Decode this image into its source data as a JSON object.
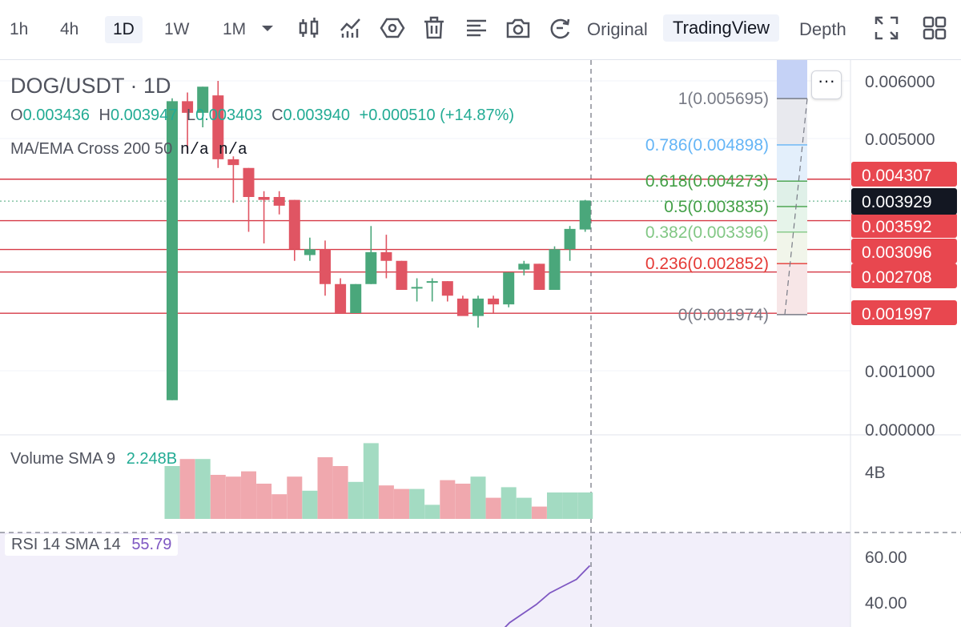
{
  "toolbar": {
    "timeframes": [
      "1h",
      "4h",
      "1D",
      "1W",
      "1M"
    ],
    "active_timeframe": "1D",
    "views": [
      "Original",
      "TradingView",
      "Depth"
    ],
    "active_view": "TradingView",
    "icons": [
      "timeframe-dropdown-icon",
      "candle-type-icon",
      "indicators-icon",
      "settings-hex-icon",
      "trash-icon",
      "drawing-list-icon",
      "camera-icon",
      "replay-icon",
      "fullscreen-icon",
      "grid-layout-icon"
    ]
  },
  "legend": {
    "symbol": "DOG/USDT · 1D",
    "o_label": "O",
    "o_value": "0.003436",
    "h_label": "H",
    "h_value": "0.003947",
    "l_label": "L",
    "l_value": "0.003403",
    "c_label": "C",
    "c_value": "0.003940",
    "change": "+0.000510 (+14.87%)",
    "ma_label": "MA/EMA Cross 200 50",
    "ma_values": "n/a n/a",
    "volume_label": "Volume SMA 9",
    "volume_value": "2.248B",
    "rsi_label": "RSI 14 SMA 14",
    "rsi_value": "55.79"
  },
  "fib_labels": [
    {
      "text": "1(0.005695)",
      "color": "#787b86"
    },
    {
      "text": "0.786(0.004898)",
      "color": "#64b5f6"
    },
    {
      "text": "0.618(0.004273)",
      "color": "#43a047"
    },
    {
      "text": "0.5(0.003835)",
      "color": "#43a047"
    },
    {
      "text": "0.382(0.003396)",
      "color": "#81c784"
    },
    {
      "text": "0.236(0.002852)",
      "color": "#e53935"
    },
    {
      "text": "0(0.001974)",
      "color": "#787b86"
    }
  ],
  "price_axis": {
    "ticks": [
      "0.006000",
      "0.005000",
      "0.001000",
      "0.000000"
    ],
    "volume_ticks": [
      "4B"
    ],
    "rsi_ticks": [
      "60.00",
      "40.00"
    ],
    "current_price": "0.003929",
    "level_labels": [
      "0.004307",
      "0.003592",
      "0.003096",
      "0.002708",
      "0.001997"
    ]
  },
  "colors": {
    "up": "#4aa77b",
    "down": "#e05563",
    "level_line": "#d63a46",
    "rsi_line": "#7e57c2",
    "rsi_bg": "#f2effa"
  },
  "chart_data": {
    "type": "candlestick",
    "candles": [
      {
        "o": 0.0005,
        "h": 0.0057,
        "l": 0.0005,
        "c": 0.00565,
        "v": 3.0
      },
      {
        "o": 0.00565,
        "h": 0.0058,
        "l": 0.00475,
        "c": 0.00545,
        "v": 3.4
      },
      {
        "o": 0.00545,
        "h": 0.0059,
        "l": 0.0052,
        "c": 0.0059,
        "v": 3.4
      },
      {
        "o": 0.00575,
        "h": 0.006,
        "l": 0.0045,
        "c": 0.00465,
        "v": 2.5
      },
      {
        "o": 0.00465,
        "h": 0.0047,
        "l": 0.0039,
        "c": 0.00455,
        "v": 2.4
      },
      {
        "o": 0.0045,
        "h": 0.0045,
        "l": 0.0034,
        "c": 0.004,
        "v": 2.7
      },
      {
        "o": 0.004,
        "h": 0.0041,
        "l": 0.0032,
        "c": 0.00395,
        "v": 2.0
      },
      {
        "o": 0.004,
        "h": 0.0041,
        "l": 0.0037,
        "c": 0.00385,
        "v": 1.4
      },
      {
        "o": 0.00395,
        "h": 0.00395,
        "l": 0.0029,
        "c": 0.0031,
        "v": 2.4
      },
      {
        "o": 0.003,
        "h": 0.0033,
        "l": 0.0029,
        "c": 0.0031,
        "v": 1.6
      },
      {
        "o": 0.0031,
        "h": 0.00325,
        "l": 0.0023,
        "c": 0.0025,
        "v": 3.5
      },
      {
        "o": 0.0025,
        "h": 0.0026,
        "l": 0.002,
        "c": 0.002,
        "v": 3.0
      },
      {
        "o": 0.002,
        "h": 0.0025,
        "l": 0.002,
        "c": 0.0025,
        "v": 2.1
      },
      {
        "o": 0.0025,
        "h": 0.0035,
        "l": 0.0025,
        "c": 0.00305,
        "v": 4.3
      },
      {
        "o": 0.00305,
        "h": 0.00335,
        "l": 0.0026,
        "c": 0.0029,
        "v": 1.9
      },
      {
        "o": 0.0029,
        "h": 0.0029,
        "l": 0.0024,
        "c": 0.0024,
        "v": 1.7
      },
      {
        "o": 0.00245,
        "h": 0.0026,
        "l": 0.0022,
        "c": 0.00245,
        "v": 1.7
      },
      {
        "o": 0.00255,
        "h": 0.0026,
        "l": 0.0022,
        "c": 0.00255,
        "v": 0.8
      },
      {
        "o": 0.00255,
        "h": 0.00255,
        "l": 0.0022,
        "c": 0.0023,
        "v": 2.2
      },
      {
        "o": 0.00225,
        "h": 0.0023,
        "l": 0.002,
        "c": 0.00195,
        "v": 2.0
      },
      {
        "o": 0.00195,
        "h": 0.0023,
        "l": 0.00175,
        "c": 0.00225,
        "v": 2.4
      },
      {
        "o": 0.00225,
        "h": 0.0023,
        "l": 0.002,
        "c": 0.00215,
        "v": 1.2
      },
      {
        "o": 0.00215,
        "h": 0.0027,
        "l": 0.0021,
        "c": 0.0027,
        "v": 1.8
      },
      {
        "o": 0.00275,
        "h": 0.0029,
        "l": 0.00265,
        "c": 0.00285,
        "v": 1.2
      },
      {
        "o": 0.00285,
        "h": 0.00285,
        "l": 0.0024,
        "c": 0.0024,
        "v": 0.7
      },
      {
        "o": 0.0024,
        "h": 0.00315,
        "l": 0.0024,
        "c": 0.0031,
        "v": 1.5
      },
      {
        "o": 0.0031,
        "h": 0.0035,
        "l": 0.0029,
        "c": 0.00345,
        "v": 1.5
      },
      {
        "o": 0.00344,
        "h": 0.00395,
        "l": 0.0034,
        "c": 0.00394,
        "v": 1.5
      }
    ],
    "price_range": [
      0.0,
      0.0065
    ],
    "horizontal_levels": [
      0.004307,
      0.003592,
      0.003096,
      0.002708,
      0.001997
    ],
    "fib_levels": [
      0.005695,
      0.004898,
      0.004273,
      0.003835,
      0.003396,
      0.002852,
      0.001974
    ],
    "rsi": [
      20,
      21,
      23,
      24,
      22,
      25,
      26,
      27,
      25,
      31,
      35,
      39,
      44,
      47,
      50,
      56
    ],
    "rsi_range": [
      30,
      70
    ]
  }
}
